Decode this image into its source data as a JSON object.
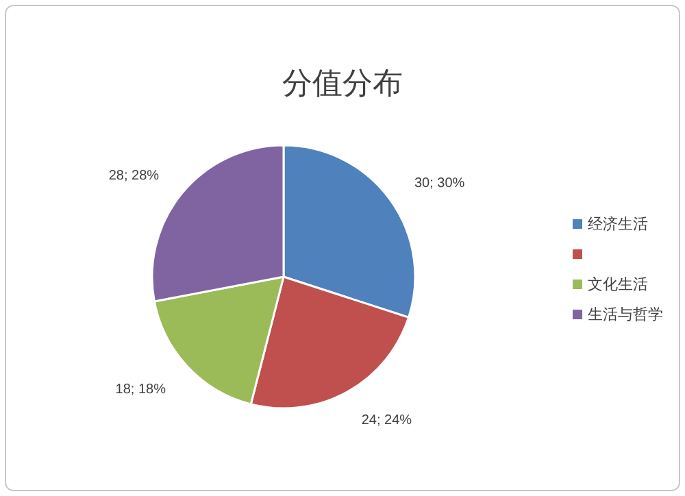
{
  "chart_data": {
    "type": "pie",
    "title": "分值分布",
    "categories": [
      "经济生活",
      null,
      "文化生活",
      "生活与哲学"
    ],
    "values": [
      30,
      24,
      18,
      28
    ],
    "colors": [
      "#4f81bd",
      "#c0504d",
      "#9bbb59",
      "#8064a2"
    ],
    "value_labels": [
      "30; 30%",
      "24; 24%",
      "18; 18%",
      "28; 28%"
    ],
    "legend": "right"
  }
}
